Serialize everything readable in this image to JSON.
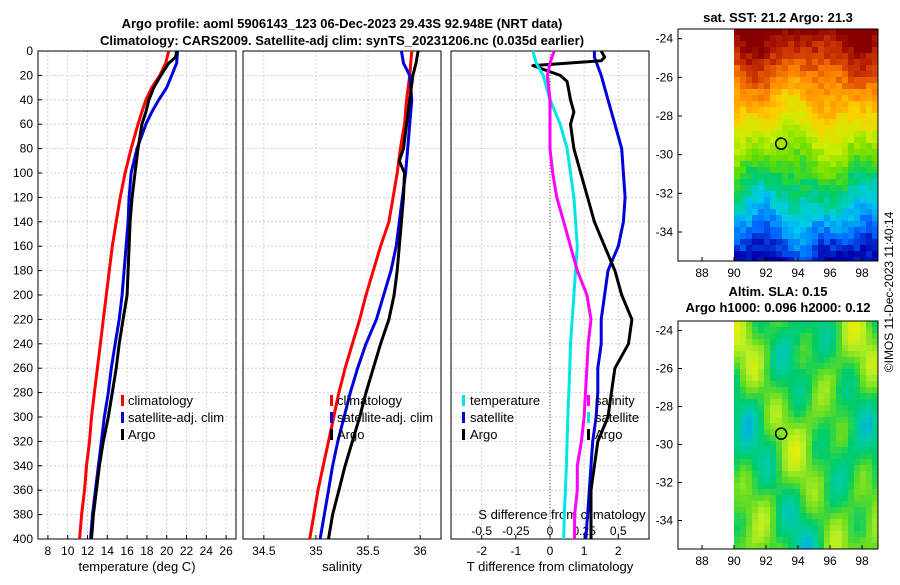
{
  "chart_data": {
    "type": "line",
    "title_line1": "Argo profile: aoml 5906143_123 06-Dec-2023 29.43S 92.948E (NRT data)",
    "title_line2": "Climatology: CARS2009. Satellite-adj clim: synTS_20231206.nc (0.035d earlier)",
    "depth_ylim": [
      0,
      400
    ],
    "depth_ticks": [
      0,
      20,
      40,
      60,
      80,
      100,
      120,
      140,
      160,
      180,
      200,
      220,
      240,
      260,
      280,
      300,
      320,
      340,
      360,
      380,
      400
    ],
    "depth_tick_labels": [
      "0",
      "20",
      "40",
      "60",
      "80",
      "100",
      "120",
      "140",
      "160",
      "180",
      "200",
      "220",
      "240",
      "260",
      "280",
      "300",
      "320",
      "340",
      "360",
      "380",
      "400"
    ],
    "colors": {
      "climatology": "#ff0000",
      "satellite": "#0000dd",
      "argo": "#000000",
      "temp_diff": "#00e5e5",
      "sal_diff": "#ff00ff",
      "temp_diff_sat": "#0000dd",
      "sal_diff_sat": "#000000"
    },
    "panels": {
      "temperature": {
        "xlabel": "temperature (deg C)",
        "xlim": [
          7,
          27
        ],
        "xticks": [
          8,
          10,
          12,
          14,
          16,
          18,
          20,
          22,
          24,
          26
        ],
        "xtick_labels": [
          "8",
          "10",
          "12",
          "14",
          "16",
          "18",
          "20",
          "22",
          "24",
          "26"
        ],
        "legend": [
          "climatology",
          "satellite-adj. clim",
          "Argo"
        ],
        "series": [
          {
            "name": "climatology",
            "color": "#ff0000",
            "depth": [
              0,
              10,
              20,
              30,
              40,
              50,
              60,
              80,
              100,
              120,
              140,
              160,
              180,
              200,
              220,
              240,
              260,
              280,
              300,
              320,
              340,
              360,
              380,
              400
            ],
            "values": [
              20.2,
              19.9,
              19.3,
              18.5,
              17.9,
              17.5,
              17.1,
              16.4,
              15.8,
              15.3,
              14.9,
              14.5,
              14.2,
              13.9,
              13.6,
              13.3,
              13.0,
              12.7,
              12.4,
              12.2,
              11.9,
              11.7,
              11.4,
              11.2
            ]
          },
          {
            "name": "satellite-adj. clim",
            "color": "#0000dd",
            "depth": [
              0,
              10,
              20,
              30,
              40,
              50,
              60,
              80,
              100,
              120,
              140,
              160,
              180,
              200,
              220,
              240,
              260,
              280,
              300,
              320,
              340,
              360,
              380,
              400
            ],
            "values": [
              21.1,
              21.0,
              20.5,
              20.0,
              19.2,
              18.5,
              17.9,
              17.0,
              16.4,
              16.2,
              16.1,
              15.9,
              15.7,
              15.5,
              15.2,
              14.8,
              14.4,
              14.1,
              13.7,
              13.4,
              13.1,
              12.8,
              12.5,
              12.3
            ]
          },
          {
            "name": "Argo",
            "color": "#000000",
            "depth": [
              0,
              5,
              10,
              20,
              30,
              40,
              50,
              60,
              80,
              100,
              120,
              140,
              160,
              180,
              200,
              220,
              240,
              260,
              280,
              300,
              320,
              340,
              360,
              380,
              400
            ],
            "values": [
              21.0,
              20.9,
              20.2,
              19.4,
              18.7,
              18.2,
              17.9,
              17.5,
              17.1,
              16.8,
              16.5,
              16.3,
              16.2,
              16.1,
              16.0,
              15.6,
              15.2,
              14.9,
              14.5,
              14.1,
              13.6,
              13.2,
              12.9,
              12.6,
              12.4
            ]
          }
        ]
      },
      "salinity": {
        "xlabel": "salinity",
        "xlim": [
          34.3,
          36.2
        ],
        "xticks": [
          34.5,
          35,
          35.5,
          36
        ],
        "xtick_labels": [
          "34.5",
          "35",
          "35.5",
          "36"
        ],
        "legend": [
          "climatology",
          "satellite-adj. clim",
          "Argo"
        ],
        "series": [
          {
            "name": "climatology",
            "color": "#ff0000",
            "depth": [
              0,
              20,
              40,
              60,
              80,
              100,
              120,
              140,
              160,
              180,
              200,
              220,
              240,
              260,
              280,
              300,
              320,
              340,
              360,
              380,
              400
            ],
            "values": [
              35.92,
              35.9,
              35.87,
              35.85,
              35.81,
              35.78,
              35.74,
              35.7,
              35.62,
              35.55,
              35.48,
              35.42,
              35.35,
              35.28,
              35.22,
              35.17,
              35.12,
              35.07,
              35.02,
              34.98,
              34.94
            ]
          },
          {
            "name": "satellite-adj. clim",
            "color": "#0000dd",
            "depth": [
              0,
              10,
              20,
              40,
              60,
              80,
              100,
              120,
              140,
              160,
              180,
              200,
              220,
              240,
              260,
              280,
              300,
              320,
              340,
              360,
              380,
              400
            ],
            "values": [
              35.82,
              35.84,
              35.9,
              35.92,
              35.9,
              35.88,
              35.86,
              35.83,
              35.8,
              35.77,
              35.72,
              35.65,
              35.58,
              35.48,
              35.4,
              35.33,
              35.27,
              35.21,
              35.16,
              35.12,
              35.08,
              35.04
            ]
          },
          {
            "name": "Argo",
            "color": "#000000",
            "depth": [
              0,
              10,
              20,
              40,
              60,
              80,
              90,
              100,
              120,
              140,
              160,
              180,
              200,
              220,
              240,
              260,
              280,
              300,
              320,
              340,
              360,
              380,
              400
            ],
            "values": [
              35.98,
              35.96,
              35.93,
              35.9,
              35.87,
              35.84,
              35.8,
              35.85,
              35.84,
              35.82,
              35.8,
              35.78,
              35.75,
              35.7,
              35.62,
              35.55,
              35.48,
              35.42,
              35.35,
              35.28,
              35.22,
              35.16,
              35.12
            ]
          }
        ]
      },
      "difference": {
        "xlabel": "T difference from climatology",
        "xlim": [
          -2.9,
          2.9
        ],
        "xticks": [
          -2,
          -1,
          0,
          1,
          2
        ],
        "xtick_labels": [
          "-2",
          "-1",
          "0",
          "1",
          "2"
        ],
        "top_axis_label": "S difference from climatology",
        "top_xticks": [
          -0.5,
          -0.25,
          0,
          0.25,
          0.5
        ],
        "top_xtick_labels": [
          "-0.5",
          "-0.25",
          "0",
          "0.25",
          "0.5"
        ],
        "s_scale": 4,
        "legend_left": [
          "temperature",
          "satellite",
          "Argo"
        ],
        "legend_right": [
          "salinity",
          "satellite",
          "Argo"
        ],
        "series": [
          {
            "name": "T sat-adj minus clim",
            "color": "#0000dd",
            "kind": "T",
            "depth": [
              0,
              5,
              20,
              40,
              60,
              80,
              100,
              120,
              140,
              160,
              180,
              200,
              220,
              240,
              260,
              280,
              300,
              320,
              340,
              360,
              380,
              400
            ],
            "values": [
              1.3,
              1.3,
              1.5,
              1.7,
              1.9,
              2.1,
              2.15,
              2.2,
              2.15,
              2.0,
              1.7,
              1.6,
              1.5,
              1.5,
              1.4,
              1.4,
              1.35,
              1.25,
              1.2,
              1.15,
              1.1,
              1.05
            ]
          },
          {
            "name": "T Argo minus clim",
            "color": "#000000",
            "kind": "T",
            "depth": [
              0,
              5,
              8,
              12,
              20,
              25,
              40,
              50,
              60,
              80,
              100,
              120,
              140,
              160,
              180,
              200,
              220,
              240,
              260,
              280,
              300,
              320,
              340,
              360,
              380,
              400
            ],
            "values": [
              1.5,
              1.6,
              1.5,
              -0.5,
              0.3,
              0.5,
              0.6,
              0.7,
              0.6,
              0.7,
              0.9,
              1.1,
              1.3,
              1.6,
              1.9,
              2.1,
              2.4,
              2.3,
              1.9,
              1.8,
              1.7,
              1.4,
              1.3,
              1.2,
              1.2,
              1.2
            ]
          },
          {
            "name": "T satellite diff",
            "color": "#00e5e5",
            "kind": "T",
            "depth": [
              0,
              10,
              20,
              40,
              60,
              80,
              100,
              120,
              140,
              160,
              180,
              200,
              220,
              240,
              260,
              280,
              300,
              320,
              340,
              360,
              380,
              400
            ],
            "values": [
              -0.5,
              -0.4,
              -0.2,
              0.0,
              0.3,
              0.5,
              0.6,
              0.7,
              0.75,
              0.8,
              0.75,
              0.7,
              0.65,
              0.6,
              0.58,
              0.55,
              0.52,
              0.5,
              0.48,
              0.45,
              0.42,
              0.4
            ]
          },
          {
            "name": "S Argo minus clim",
            "color": "#ff00ff",
            "kind": "S",
            "depth": [
              0,
              10,
              20,
              40,
              60,
              80,
              100,
              120,
              140,
              160,
              180,
              200,
              220,
              240,
              260,
              280,
              300,
              320,
              340,
              360,
              380,
              400
            ],
            "values": [
              0.03,
              0.0,
              -0.02,
              0.0,
              0.0,
              0.0,
              0.02,
              0.05,
              0.1,
              0.15,
              0.2,
              0.27,
              0.3,
              0.28,
              0.27,
              0.26,
              0.25,
              0.23,
              0.2,
              0.2,
              0.18,
              0.18
            ]
          }
        ]
      }
    },
    "maps": {
      "sst": {
        "title": "sat. SST: 21.2 Argo: 21.3",
        "lon_range": [
          86.5,
          99
        ],
        "lat_range": [
          -35.5,
          -23.5
        ],
        "xticks": [
          88,
          90,
          92,
          94,
          96,
          98
        ],
        "xtick_labels": [
          "88",
          "90",
          "92",
          "94",
          "96",
          "98"
        ],
        "yticks": [
          -24,
          -26,
          -28,
          -30,
          -32,
          -34
        ],
        "ytick_labels": [
          "-24",
          "-26",
          "-28",
          "-30",
          "-32",
          "-34"
        ],
        "data_lon_start": 90,
        "marker": {
          "lon": 92.948,
          "lat": -29.43
        },
        "colormap": [
          "#0000aa",
          "#0066ff",
          "#00ccee",
          "#00cc66",
          "#66dd00",
          "#ccee00",
          "#ffcc00",
          "#ff8800",
          "#cc3300",
          "#880000"
        ]
      },
      "sla": {
        "title_line1": "Altim. SLA: 0.15",
        "title_line2": "Argo h1000: 0.096 h2000: 0.12",
        "lon_range": [
          86.5,
          99
        ],
        "lat_range": [
          -35.5,
          -23.5
        ],
        "xticks": [
          88,
          90,
          92,
          94,
          96,
          98
        ],
        "xtick_labels": [
          "88",
          "90",
          "92",
          "94",
          "96",
          "98"
        ],
        "yticks": [
          -24,
          -26,
          -28,
          -30,
          -32,
          -34
        ],
        "ytick_labels": [
          "-24",
          "-26",
          "-28",
          "-30",
          "-32",
          "-34"
        ],
        "data_lon_start": 90,
        "marker": {
          "lon": 92.948,
          "lat": -29.43
        },
        "colormap": [
          "#00aaee",
          "#00ccaa",
          "#00cc66",
          "#66dd22",
          "#bbee22",
          "#eeee00"
        ]
      }
    },
    "credit": "©IMOS 11-Dec-2023 11:40:14"
  }
}
